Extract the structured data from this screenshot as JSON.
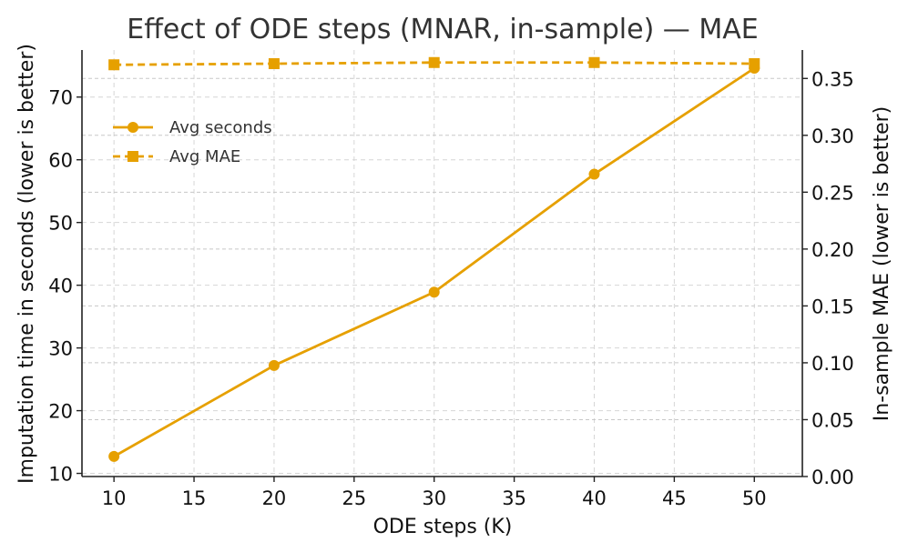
{
  "chart_data": {
    "type": "line",
    "title": "Effect of ODE steps (MNAR, in-sample) — MAE",
    "xlabel": "ODE steps (K)",
    "ylabel_left": "Imputation time in seconds (lower is better)",
    "ylabel_right": "In-sample MAE (lower is better)",
    "x": [
      10,
      20,
      30,
      40,
      50
    ],
    "xlim": [
      8,
      53
    ],
    "ylim_left": [
      9.5,
      77.5
    ],
    "ylim_right": [
      0.0,
      0.375
    ],
    "xticks": [
      "10",
      "15",
      "20",
      "25",
      "30",
      "35",
      "40",
      "45",
      "50"
    ],
    "yticks_left": [
      "10",
      "20",
      "30",
      "40",
      "50",
      "60",
      "70"
    ],
    "yticks_right": [
      "0.00",
      "0.05",
      "0.10",
      "0.15",
      "0.20",
      "0.25",
      "0.30",
      "0.35"
    ],
    "grid": true,
    "legend_position": "upper-left",
    "series": [
      {
        "name": "Avg seconds",
        "axis": "left",
        "values": [
          12.7,
          27.2,
          38.9,
          57.7,
          74.6
        ],
        "color": "#E6A000",
        "linestyle": "solid",
        "marker": "circle"
      },
      {
        "name": "Avg MAE",
        "axis": "right",
        "values": [
          0.362,
          0.363,
          0.364,
          0.364,
          0.363
        ],
        "color": "#E6A000",
        "linestyle": "dashed",
        "marker": "square"
      }
    ]
  }
}
